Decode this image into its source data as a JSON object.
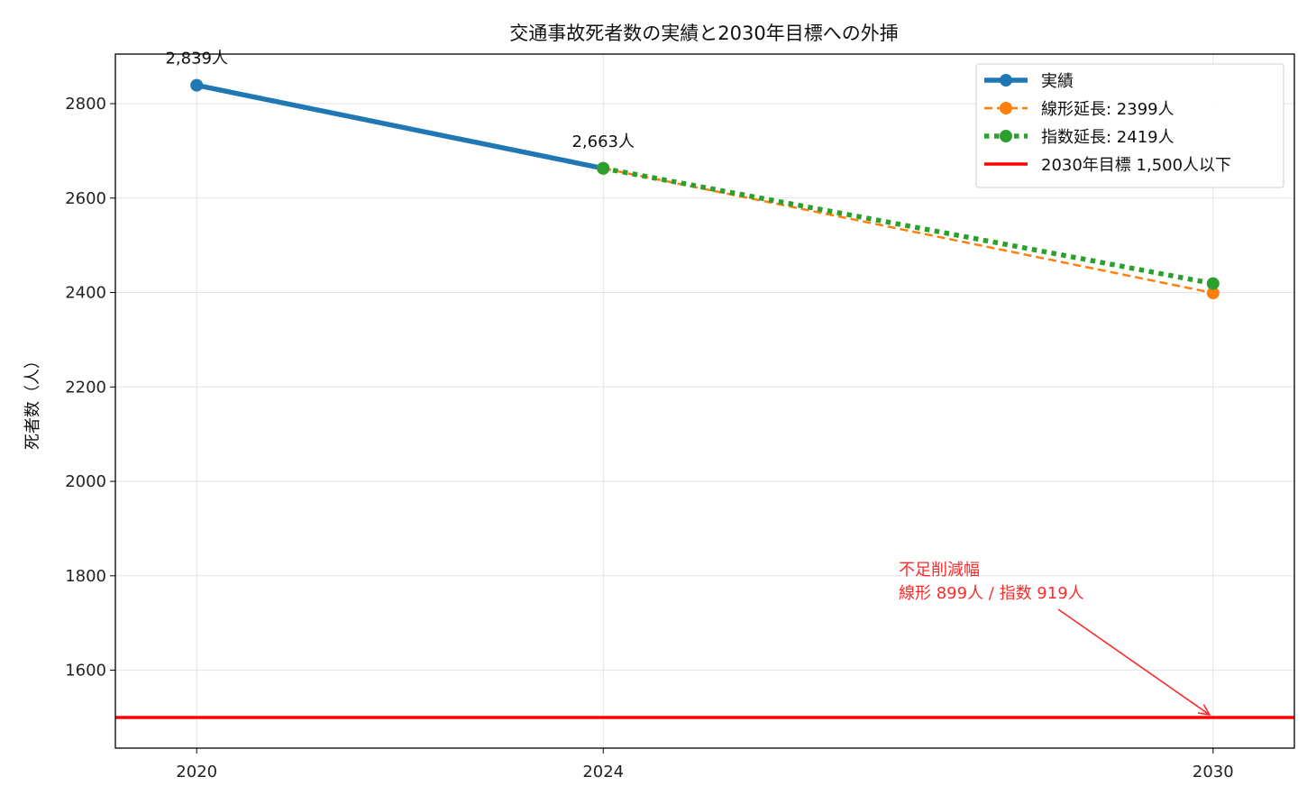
{
  "chart_data": {
    "type": "line",
    "title": "交通事故死者数の実績と2030年目標への外挿",
    "xlabel": "",
    "ylabel": "死者数（人）",
    "x_ticks": [
      "2020",
      "2024",
      "2030"
    ],
    "y_ticks": [
      1600,
      1800,
      2000,
      2200,
      2400,
      2600,
      2800
    ],
    "xlim": [
      2019.2,
      2030.8
    ],
    "ylim": [
      1435,
      2905
    ],
    "grid": true,
    "legend_position": "top-right",
    "series": [
      {
        "name": "実績",
        "style": "solid-marker",
        "color": "#1f77b4",
        "x": [
          2020,
          2024
        ],
        "y": [
          2839,
          2663
        ]
      },
      {
        "name": "線形延長: 2399人",
        "style": "dashed-marker",
        "color": "#ff7f0e",
        "x": [
          2024,
          2030
        ],
        "y": [
          2663,
          2399
        ]
      },
      {
        "name": "指数延長: 2419人",
        "style": "dotted-marker",
        "color": "#2ca02c",
        "x": [
          2024,
          2030
        ],
        "y": [
          2663,
          2419
        ]
      },
      {
        "name": "2030年目標 1,500人以下",
        "style": "hline",
        "color": "#ff0000",
        "y": 1500
      }
    ],
    "data_labels": [
      {
        "x": 2020,
        "y": 2839,
        "text": "2,839人"
      },
      {
        "x": 2024,
        "y": 2663,
        "text": "2,663人"
      }
    ],
    "annotation": {
      "lines": [
        "不足削減幅",
        "線形 899人 / 指数 919人"
      ],
      "color": "#ff2a2a",
      "arrow_to": {
        "x": 2030,
        "y": 1500
      }
    }
  }
}
